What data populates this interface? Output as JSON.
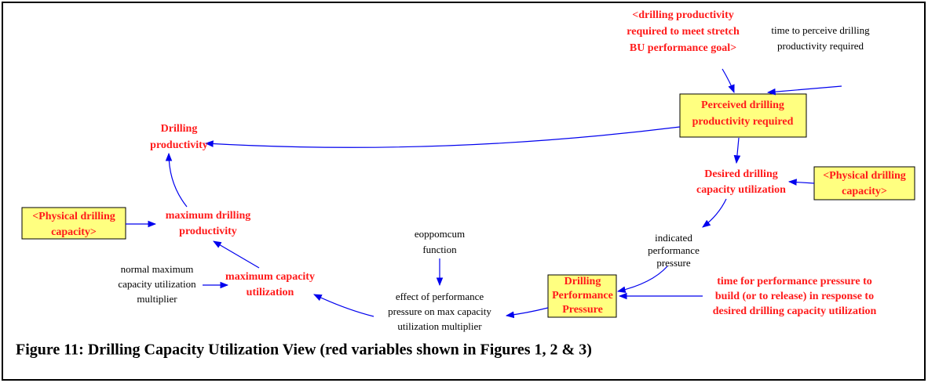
{
  "nodes": [
    {
      "lines": [
        "<drilling productivity",
        "required to meet stretch",
        "BU performance goal>"
      ]
    },
    {
      "lines": [
        "time to perceive drilling",
        "productivity required"
      ]
    },
    {
      "lines": [
        "Perceived drilling",
        "productivity required"
      ]
    },
    {
      "lines": [
        "Drilling",
        "productivity"
      ]
    },
    {
      "lines": [
        "Desired drilling",
        "capacity utilization"
      ]
    },
    {
      "lines": [
        "<Physical drilling",
        "capacity>"
      ]
    },
    {
      "lines": [
        "<Physical drilling",
        "capacity>"
      ]
    },
    {
      "lines": [
        "maximum drilling",
        "productivity"
      ]
    },
    {
      "lines": [
        "indicated",
        "performance",
        "pressure"
      ]
    },
    {
      "lines": [
        "eoppomcum",
        "function"
      ]
    },
    {
      "lines": [
        "normal maximum",
        "capacity utilization",
        "multiplier"
      ]
    },
    {
      "lines": [
        "maximum capacity",
        "utilization"
      ]
    },
    {
      "lines": [
        "effect of performance",
        "pressure on max capacity",
        "utilization multiplier"
      ]
    },
    {
      "lines": [
        "Drilling",
        "Performance",
        "Pressure"
      ]
    },
    {
      "lines": [
        "time for performance pressure to",
        "build (or to release) in response to",
        "desired drilling capacity utilization"
      ]
    }
  ],
  "caption": "Figure 11: Drilling Capacity Utilization View (red variables shown in Figures 1, 2 & 3)"
}
